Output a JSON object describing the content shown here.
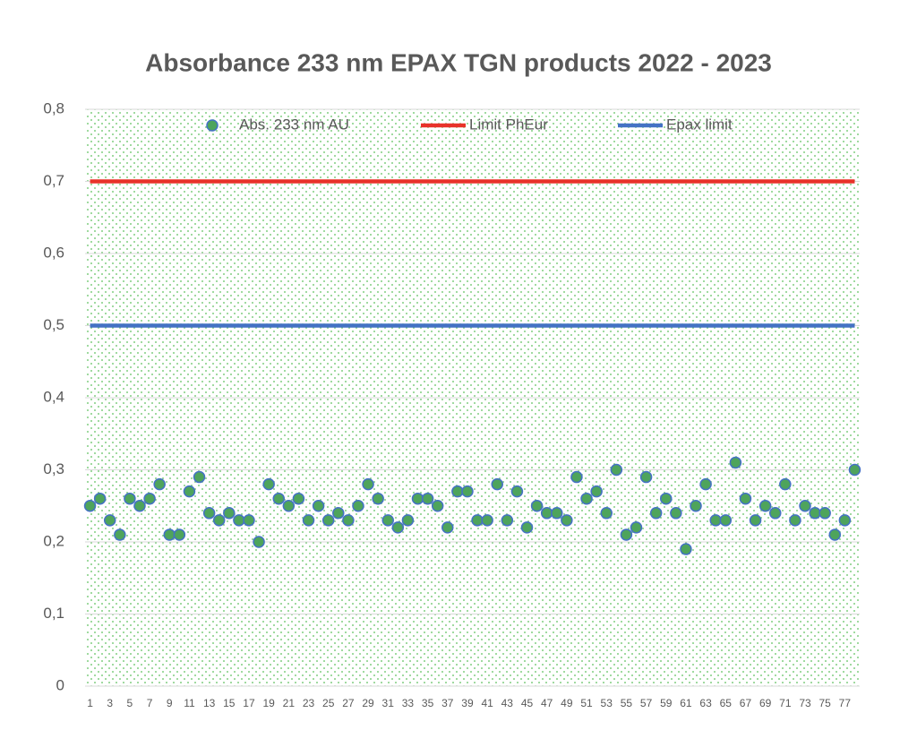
{
  "chart_data": {
    "type": "line",
    "title": "Absorbance 233 nm EPAX TGN products 2022 - 2023",
    "categories": [
      1,
      null,
      3,
      null,
      5,
      null,
      7,
      null,
      9,
      null,
      11,
      null,
      13,
      null,
      15,
      null,
      17,
      null,
      19,
      null,
      21,
      null,
      23,
      null,
      25,
      null,
      27,
      null,
      29,
      null,
      31,
      null,
      33,
      null,
      35,
      null,
      37,
      null,
      39,
      null,
      41,
      null,
      43,
      null,
      45,
      null,
      47,
      null,
      49,
      null,
      51,
      null,
      53,
      null,
      55,
      null,
      57,
      null,
      59,
      null,
      61,
      null,
      63,
      null,
      65,
      null,
      67,
      null,
      69,
      null,
      71,
      null,
      73,
      null,
      75,
      null,
      77,
      null
    ],
    "series": [
      {
        "name": "Abs. 233 nm AU",
        "type": "scatter",
        "color": "#4ea45c",
        "edgecolor": "#4472c4",
        "values": [
          0.25,
          0.26,
          0.23,
          0.21,
          0.26,
          0.25,
          0.26,
          0.28,
          0.21,
          0.21,
          0.27,
          0.29,
          0.24,
          0.23,
          0.24,
          0.23,
          0.23,
          0.2,
          0.28,
          0.26,
          0.25,
          0.26,
          0.23,
          0.25,
          0.23,
          0.24,
          0.23,
          0.25,
          0.28,
          0.26,
          0.23,
          0.22,
          0.23,
          0.26,
          0.26,
          0.25,
          0.22,
          0.27,
          0.27,
          0.23,
          0.23,
          0.28,
          0.23,
          0.27,
          0.22,
          0.25,
          0.24,
          0.24,
          0.23,
          0.29,
          0.26,
          0.27,
          0.24,
          0.3,
          0.21,
          0.22,
          0.29,
          0.24,
          0.26,
          0.24,
          0.19,
          0.25,
          0.28,
          0.23,
          0.23,
          0.31,
          0.26,
          0.23,
          0.25,
          0.24,
          0.28,
          0.23,
          0.25,
          0.24,
          0.24,
          0.21,
          0.23,
          0.3
        ]
      },
      {
        "name": "Limit PhEur",
        "type": "line",
        "color": "#e8322a",
        "values": [
          0.7,
          0.7,
          0.7,
          0.7,
          0.7,
          0.7,
          0.7,
          0.7,
          0.7,
          0.7,
          0.7,
          0.7,
          0.7,
          0.7,
          0.7,
          0.7,
          0.7,
          0.7,
          0.7,
          0.7,
          0.7,
          0.7,
          0.7,
          0.7,
          0.7,
          0.7,
          0.7,
          0.7,
          0.7,
          0.7,
          0.7,
          0.7,
          0.7,
          0.7,
          0.7,
          0.7,
          0.7,
          0.7,
          0.7,
          0.7,
          0.7,
          0.7,
          0.7,
          0.7,
          0.7,
          0.7,
          0.7,
          0.7,
          0.7,
          0.7,
          0.7,
          0.7,
          0.7,
          0.7,
          0.7,
          0.7,
          0.7,
          0.7,
          0.7,
          0.7,
          0.7,
          0.7,
          0.7,
          0.7,
          0.7,
          0.7,
          0.7,
          0.7,
          0.7,
          0.7,
          0.7,
          0.7,
          0.7,
          0.7,
          0.7,
          0.7,
          0.7,
          0.7
        ]
      },
      {
        "name": "Epax limit",
        "type": "line",
        "color": "#4472c4",
        "values": [
          0.5,
          0.5,
          0.5,
          0.5,
          0.5,
          0.5,
          0.5,
          0.5,
          0.5,
          0.5,
          0.5,
          0.5,
          0.5,
          0.5,
          0.5,
          0.5,
          0.5,
          0.5,
          0.5,
          0.5,
          0.5,
          0.5,
          0.5,
          0.5,
          0.5,
          0.5,
          0.5,
          0.5,
          0.5,
          0.5,
          0.5,
          0.5,
          0.5,
          0.5,
          0.5,
          0.5,
          0.5,
          0.5,
          0.5,
          0.5,
          0.5,
          0.5,
          0.5,
          0.5,
          0.5,
          0.5,
          0.5,
          0.5,
          0.5,
          0.5,
          0.5,
          0.5,
          0.5,
          0.5,
          0.5,
          0.5,
          0.5,
          0.5,
          0.5,
          0.5,
          0.5,
          0.5,
          0.5,
          0.5,
          0.5,
          0.5,
          0.5,
          0.5,
          0.5,
          0.5,
          0.5,
          0.5,
          0.5,
          0.5,
          0.5,
          0.5,
          0.5,
          0.5
        ]
      }
    ],
    "ylim": [
      0,
      0.8
    ],
    "yticks": [
      0,
      {
        "value": 0.1,
        "label": "0,1"
      },
      {
        "value": 0.2,
        "label": "0,2"
      },
      {
        "value": 0.3,
        "label": "0,3"
      },
      {
        "value": 0.4,
        "label": "0,4"
      },
      {
        "value": 0.5,
        "label": "0,5"
      },
      {
        "value": 0.6,
        "label": "0,6"
      },
      {
        "value": 0.7,
        "label": "0,7"
      },
      {
        "value": 0.8,
        "label": "0,8"
      }
    ],
    "grid": true,
    "legend": "top"
  }
}
